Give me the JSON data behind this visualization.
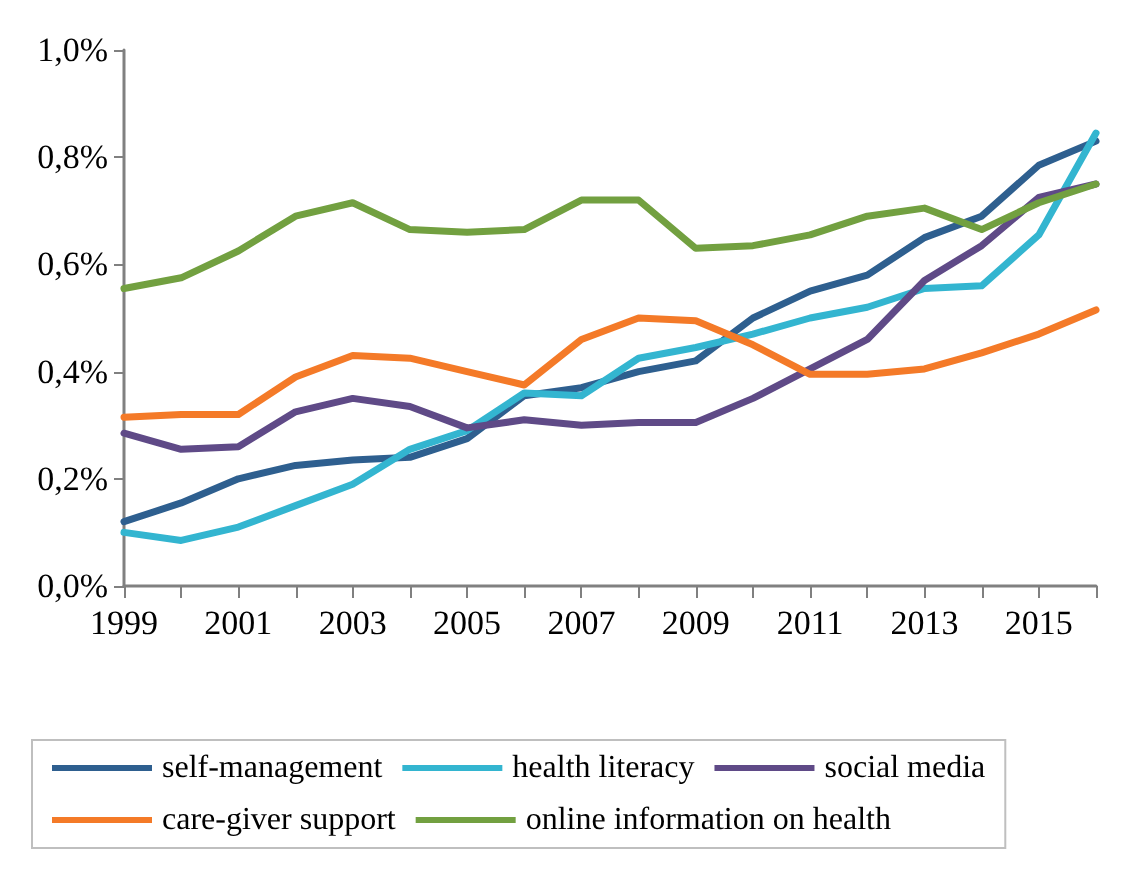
{
  "chart_data": {
    "type": "line",
    "categories": [
      "1999",
      null,
      "2001",
      null,
      "2003",
      null,
      "2005",
      null,
      "2007",
      null,
      "2009",
      null,
      "2011",
      null,
      "2013",
      null,
      "2015",
      null
    ],
    "series": [
      {
        "name": "self-management",
        "color": "#2e5f8f",
        "values": [
          0.12,
          0.155,
          0.2,
          0.225,
          0.235,
          0.24,
          0.275,
          0.355,
          0.37,
          0.4,
          0.42,
          0.5,
          0.55,
          0.58,
          0.65,
          0.69,
          0.785,
          0.83
        ]
      },
      {
        "name": "health literacy",
        "color": "#33b5d0",
        "values": [
          0.1,
          0.085,
          0.11,
          0.15,
          0.19,
          0.255,
          0.29,
          0.36,
          0.355,
          0.425,
          0.445,
          0.47,
          0.5,
          0.52,
          0.555,
          0.56,
          0.655,
          0.845
        ]
      },
      {
        "name": "social media",
        "color": "#5f4a87",
        "values": [
          0.285,
          0.255,
          0.26,
          0.325,
          0.35,
          0.335,
          0.295,
          0.31,
          0.3,
          0.305,
          0.305,
          0.35,
          0.405,
          0.46,
          0.57,
          0.635,
          0.725,
          0.75
        ]
      },
      {
        "name": "care-giver support",
        "color": "#f47a28",
        "values": [
          0.315,
          0.32,
          0.32,
          0.39,
          0.43,
          0.425,
          0.4,
          0.375,
          0.46,
          0.5,
          0.495,
          0.45,
          0.395,
          0.395,
          0.405,
          0.435,
          0.47,
          0.515
        ]
      },
      {
        "name": "online information on health",
        "color": "#72a040",
        "values": [
          0.555,
          0.575,
          0.625,
          0.69,
          0.715,
          0.665,
          0.66,
          0.665,
          0.72,
          0.72,
          0.63,
          0.635,
          0.655,
          0.69,
          0.705,
          0.665,
          0.715,
          0.75
        ]
      }
    ],
    "ylim": [
      0,
      1
    ],
    "yticks": [
      {
        "value": 0,
        "label": "0,0%"
      },
      {
        "value": 0.2,
        "label": "0,2%"
      },
      {
        "value": 0.4,
        "label": "0,4%"
      },
      {
        "value": 0.6,
        "label": "0,6%"
      },
      {
        "value": 0.8,
        "label": "0,8%"
      },
      {
        "value": 1,
        "label": "1,0%"
      }
    ],
    "grid": false,
    "legend": "bottom",
    "marker": "none",
    "line_style": "solid"
  }
}
